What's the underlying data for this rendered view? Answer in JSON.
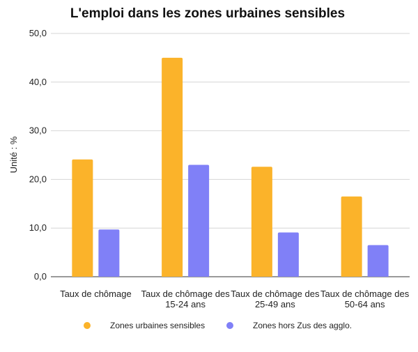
{
  "chart_data": {
    "type": "bar",
    "title": "L'emploi dans les zones urbaines sensibles",
    "ylabel": "Unité : %",
    "xlabel": "",
    "ylim": [
      0,
      50
    ],
    "yticks": [
      0,
      10,
      20,
      30,
      40,
      50
    ],
    "ytick_labels": [
      "0,0",
      "10,0",
      "20,0",
      "30,0",
      "40,0",
      "50,0"
    ],
    "grid": true,
    "legend_position": "bottom",
    "categories": [
      [
        "Taux de chômage"
      ],
      [
        "Taux de chômage des",
        "15-24 ans"
      ],
      [
        "Taux de chômage des",
        "25-49 ans"
      ],
      [
        "Taux de chômage des",
        "50-64 ans"
      ]
    ],
    "series": [
      {
        "name": "Zones urbaines sensibles",
        "color": "#FBB32A",
        "values": [
          24.1,
          45.0,
          22.6,
          16.5
        ]
      },
      {
        "name": "Zones hors Zus des agglo.",
        "color": "#8080F7",
        "values": [
          9.7,
          23.0,
          9.1,
          6.5
        ]
      }
    ]
  }
}
